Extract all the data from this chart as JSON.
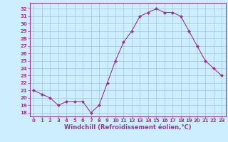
{
  "x": [
    0,
    1,
    2,
    3,
    4,
    5,
    6,
    7,
    8,
    9,
    10,
    11,
    12,
    13,
    14,
    15,
    16,
    17,
    18,
    19,
    20,
    21,
    22,
    23
  ],
  "y": [
    21,
    20.5,
    20,
    19,
    19.5,
    19.5,
    19.5,
    18,
    19,
    22,
    25,
    27.5,
    29,
    31,
    31.5,
    32,
    31.5,
    31.5,
    31,
    29,
    27,
    25,
    24,
    23
  ],
  "line_color": "#993399",
  "marker_color": "#993399",
  "bg_color": "#cceeff",
  "grid_color": "#99bbcc",
  "axis_color": "#993399",
  "xlabel": "Windchill (Refroidissement éolien,°C)",
  "ylim": [
    17.5,
    32.8
  ],
  "xlim": [
    -0.5,
    23.5
  ],
  "yticks": [
    18,
    19,
    20,
    21,
    22,
    23,
    24,
    25,
    26,
    27,
    28,
    29,
    30,
    31,
    32
  ],
  "xticks": [
    0,
    1,
    2,
    3,
    4,
    5,
    6,
    7,
    8,
    9,
    10,
    11,
    12,
    13,
    14,
    15,
    16,
    17,
    18,
    19,
    20,
    21,
    22,
    23
  ],
  "font_color": "#993399",
  "tick_fontsize": 5.0,
  "label_fontsize": 6.0
}
